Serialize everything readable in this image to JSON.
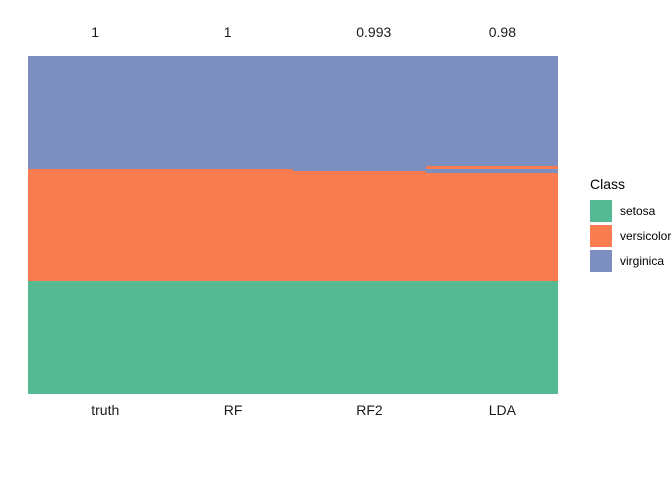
{
  "chart_data": {
    "type": "bar",
    "subtype": "stacked-per-sample-classification",
    "title": "",
    "xlabel": "",
    "ylabel": "",
    "x_categories": [
      "truth",
      "RF",
      "RF2",
      "LDA"
    ],
    "top_labels": [
      "1",
      "1",
      "0.993",
      "0.98"
    ],
    "total_samples_per_column": 150,
    "grid": false,
    "class_colors": {
      "setosa": "#55BA93",
      "versicolor": "#F97B50",
      "virginica": "#7D8EC0"
    },
    "legend": {
      "title": "Class",
      "position": "right",
      "entries": [
        "setosa",
        "versicolor",
        "virginica"
      ]
    },
    "columns": [
      {
        "label": "truth",
        "top_label": "1",
        "segments": [
          {
            "class": "virginica",
            "count": 50
          },
          {
            "class": "versicolor",
            "count": 50
          },
          {
            "class": "setosa",
            "count": 50
          }
        ]
      },
      {
        "label": "RF",
        "top_label": "1",
        "segments": [
          {
            "class": "virginica",
            "count": 50
          },
          {
            "class": "versicolor",
            "count": 50
          },
          {
            "class": "setosa",
            "count": 50
          }
        ]
      },
      {
        "label": "RF2",
        "top_label": "0.993",
        "segments": [
          {
            "class": "virginica",
            "count": 51
          },
          {
            "class": "versicolor",
            "count": 49
          },
          {
            "class": "setosa",
            "count": 50
          }
        ]
      },
      {
        "label": "LDA",
        "top_label": "0.98",
        "segments": [
          {
            "class": "virginica",
            "count": 49
          },
          {
            "class": "versicolor",
            "count": 1
          },
          {
            "class": "virginica",
            "count": 2
          },
          {
            "class": "versicolor",
            "count": 48
          },
          {
            "class": "setosa",
            "count": 50
          }
        ]
      }
    ]
  }
}
